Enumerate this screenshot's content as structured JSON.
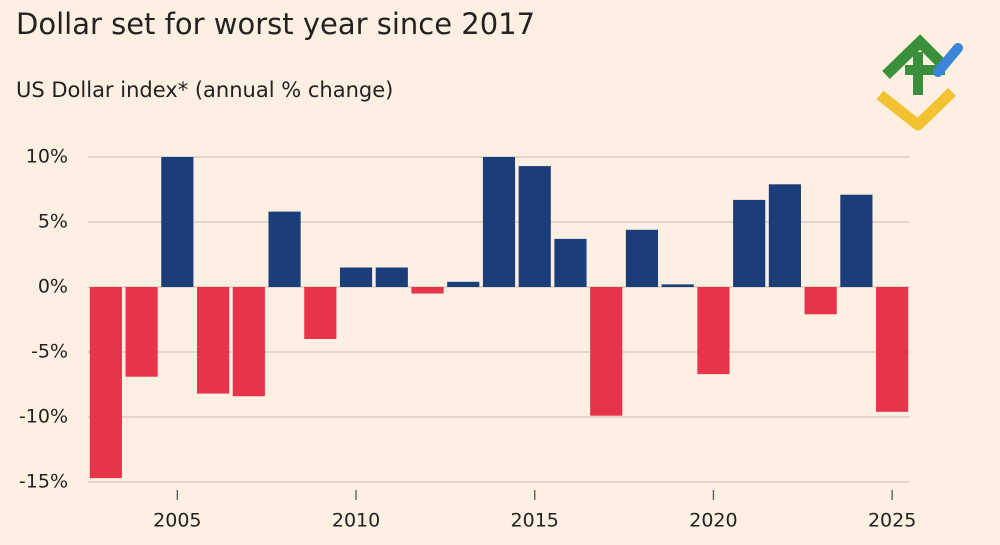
{
  "chart_data": {
    "type": "bar",
    "title": "Dollar set for worst year since 2017",
    "subtitle": "US Dollar index* (annual % change)",
    "x": [
      2003,
      2004,
      2005,
      2006,
      2007,
      2008,
      2009,
      2010,
      2011,
      2012,
      2013,
      2014,
      2015,
      2016,
      2017,
      2018,
      2019,
      2020,
      2021,
      2022,
      2023,
      2024,
      2025
    ],
    "values": [
      -14.7,
      -6.9,
      10,
      -8.2,
      -8.4,
      5.8,
      -4.0,
      1.5,
      1.5,
      -0.5,
      0.4,
      10,
      9.3,
      3.7,
      -9.9,
      4.4,
      0.2,
      -6.7,
      6.7,
      7.9,
      -2.1,
      7.1,
      -9.6
    ],
    "positive_color": "#1b3d7a",
    "negative_color": "#e8344b",
    "xlim": [
      2002.5,
      2025.5
    ],
    "xticks": [
      2005,
      2010,
      2015,
      2020,
      2025
    ],
    "ylim": [
      -15,
      10
    ],
    "yticks": [
      {
        "value": 10,
        "label": "10%"
      },
      {
        "value": 5,
        "label": "5%"
      },
      {
        "value": 0,
        "label": "0%"
      },
      {
        "value": -5,
        "label": "-5%"
      },
      {
        "value": -10,
        "label": "-10%"
      },
      {
        "value": -15,
        "label": "-15%"
      }
    ],
    "grid": true
  }
}
